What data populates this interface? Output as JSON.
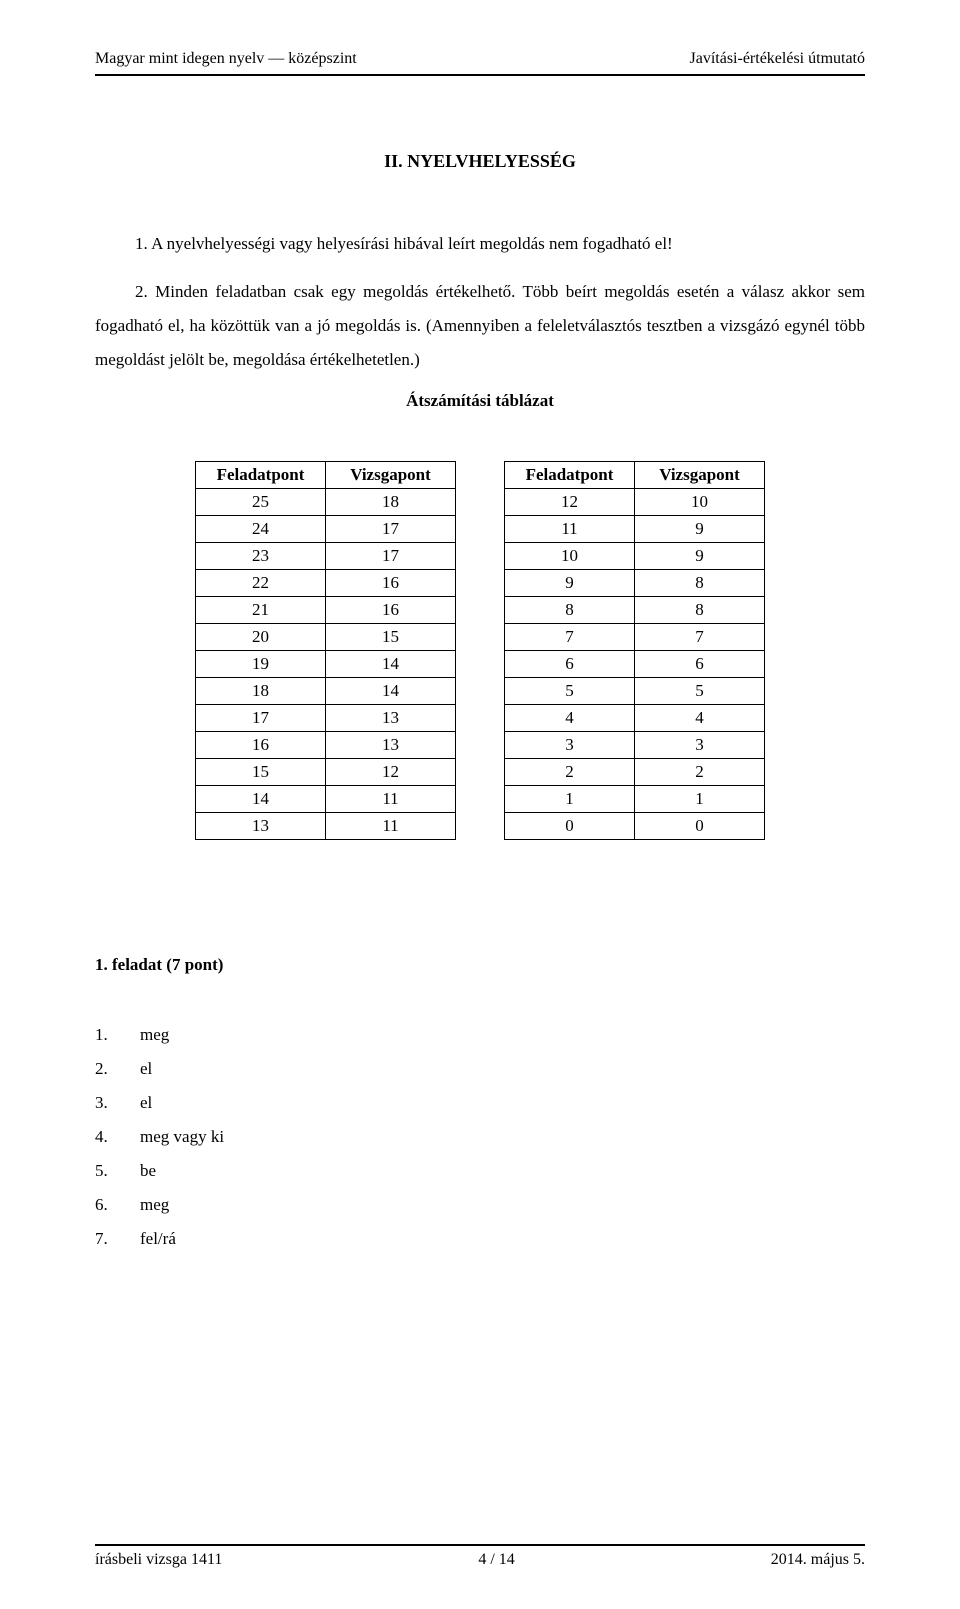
{
  "header": {
    "left": "Magyar mint idegen nyelv — középszint",
    "right": "Javítási-értékelési útmutató"
  },
  "section_title": "II. NYELVHELYESSÉG",
  "body": {
    "p1_num": "1.",
    "p1_text": "A nyelvhelyességi vagy helyesírási hibával leírt megoldás nem fogadható el!",
    "p2_num": "2.",
    "p2_text": "Minden feladatban csak egy megoldás értékelhető. Több beírt megoldás esetén a válasz akkor sem fogadható el, ha közöttük van a jó megoldás is. (Amennyiben a feleletválasztós tesztben a vizsgázó egynél több megoldást jelölt be, megoldása értékelhetetlen.)"
  },
  "conversion_title": "Átszámítási táblázat",
  "table": {
    "header_feladatpont": "Feladatpont",
    "header_vizsgapont": "Vizsgapont",
    "left_rows": [
      [
        25,
        18
      ],
      [
        24,
        17
      ],
      [
        23,
        17
      ],
      [
        22,
        16
      ],
      [
        21,
        16
      ],
      [
        20,
        15
      ],
      [
        19,
        14
      ],
      [
        18,
        14
      ],
      [
        17,
        13
      ],
      [
        16,
        13
      ],
      [
        15,
        12
      ],
      [
        14,
        11
      ],
      [
        13,
        11
      ]
    ],
    "right_rows": [
      [
        12,
        10
      ],
      [
        11,
        9
      ],
      [
        10,
        9
      ],
      [
        9,
        8
      ],
      [
        8,
        8
      ],
      [
        7,
        7
      ],
      [
        6,
        6
      ],
      [
        5,
        5
      ],
      [
        4,
        4
      ],
      [
        3,
        3
      ],
      [
        2,
        2
      ],
      [
        1,
        1
      ],
      [
        0,
        0
      ]
    ],
    "border_color": "#000000",
    "font_size": 17
  },
  "task": {
    "title": "1. feladat (7 pont)",
    "answers": [
      {
        "num": "1.",
        "text": "meg"
      },
      {
        "num": "2.",
        "text": "el"
      },
      {
        "num": "3.",
        "text": "el"
      },
      {
        "num": "4.",
        "text": "meg vagy ki"
      },
      {
        "num": "5.",
        "text": "be"
      },
      {
        "num": "6.",
        "text": "meg"
      },
      {
        "num": "7.",
        "text": "fel/rá"
      }
    ]
  },
  "footer": {
    "left": "írásbeli vizsga 1411",
    "center": "4 / 14",
    "right": "2014. május 5."
  }
}
